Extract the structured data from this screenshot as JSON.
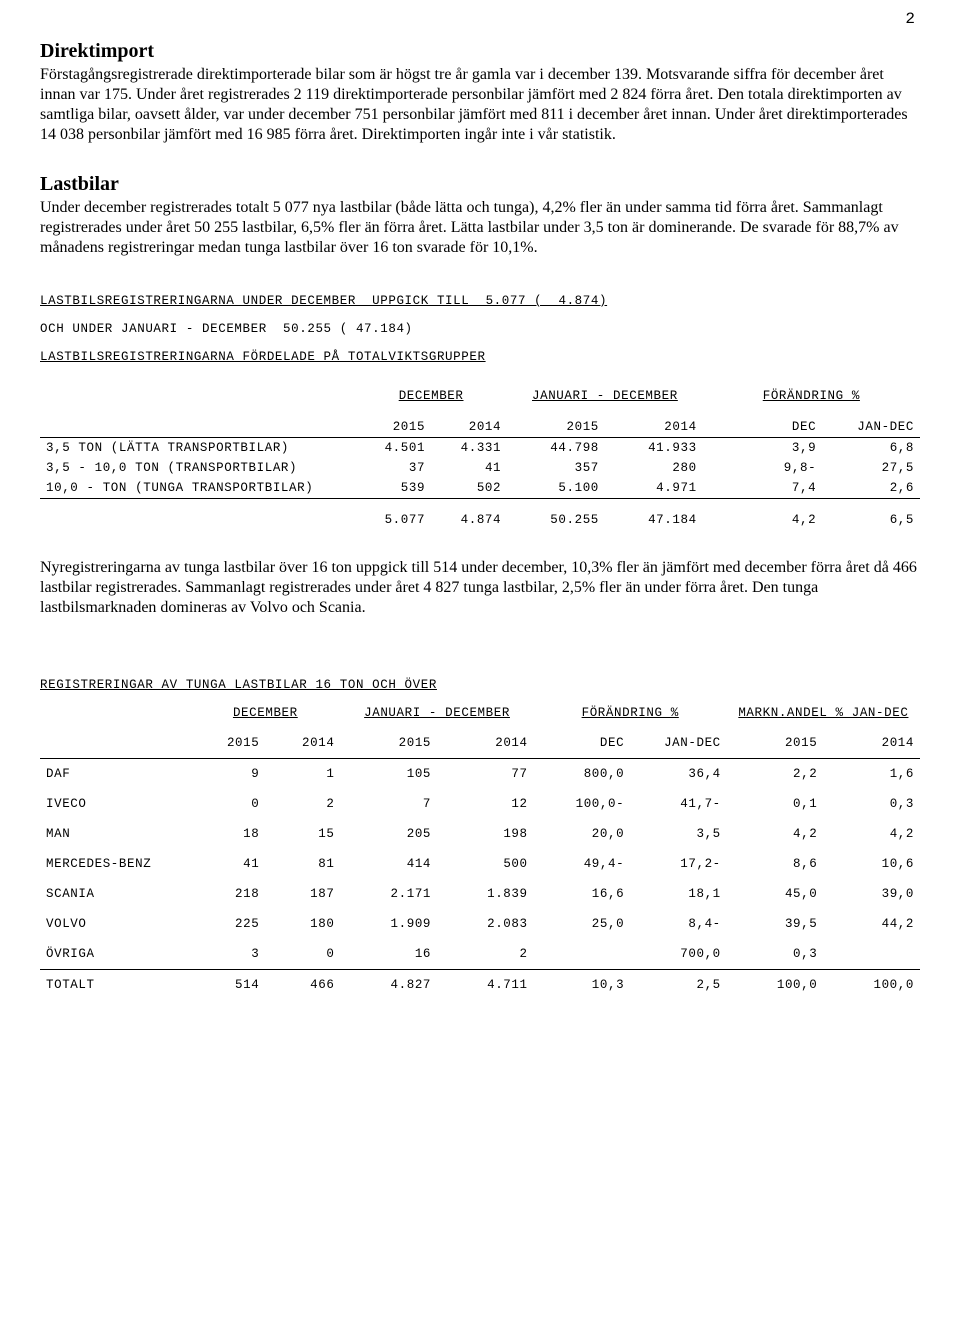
{
  "page_number": "2",
  "sec1": {
    "heading": "Direktimport",
    "text": "Förstagångsregistrerade direktimporterade bilar som är högst tre år gamla var i december 139. Motsvarande siffra för december året innan var 175. Under året registrerades 2 119 direktimporterade personbilar jämfört med 2 824 förra året. Den totala direktimporten av samtliga bilar, oavsett ålder, var under december 751 personbilar jämfört med 811 i december året innan. Under året direktimporterades 14 038 personbilar jämfört med 16 985 förra året. Direktimporten ingår inte i vår statistik."
  },
  "sec2": {
    "heading": "Lastbilar",
    "text": "Under december registrerades totalt 5 077 nya lastbilar (både lätta och tunga), 4,2% fler än under samma tid förra året. Sammanlagt registrerades under året 50 255 lastbilar, 6,5% fler än förra året. Lätta lastbilar under 3,5 ton är dominerande. De svarade för 88,7% av månadens registreringar medan tunga lastbilar över 16 ton svarade för 10,1%."
  },
  "block1": {
    "line1a": "LASTBILSREGISTRERINGARNA UNDER DECEMBER  UPPGICK TILL  5.077 (  4.874)",
    "line2": "OCH UNDER JANUARI - DECEMBER  50.255 ( 47.184)",
    "line3": "LASTBILSREGISTRERINGARNA FÖRDELADE PÅ TOTALVIKTSGRUPPER",
    "colhdr_a": "DECEMBER",
    "colhdr_b": "JANUARI - DECEMBER",
    "colhdr_c": "FÖRÄNDRING %",
    "col_2015": "2015",
    "col_2014": "2014",
    "col_dec": "DEC",
    "col_jandec": "JAN-DEC",
    "rows": [
      {
        "label": "      3,5 TON (LÄTTA TRANSPORTBILAR)",
        "d15": "4.501",
        "d14": "4.331",
        "y15": "44.798",
        "y14": "41.933",
        "dec": "3,9",
        "jd": "6,8"
      },
      {
        "label": " 3,5 - 10,0 TON (TRANSPORTBILAR)",
        "d15": "37",
        "d14": "41",
        "y15": "357",
        "y14": "280",
        "dec": "9,8-",
        "jd": "27,5"
      },
      {
        "label": "10,0 -      TON (TUNGA TRANSPORTBILAR)",
        "d15": "539",
        "d14": "502",
        "y15": "5.100",
        "y14": "4.971",
        "dec": "7,4",
        "jd": "2,6"
      }
    ],
    "total": {
      "d15": "5.077",
      "d14": "4.874",
      "y15": "50.255",
      "y14": "47.184",
      "dec": "4,2",
      "jd": "6,5"
    }
  },
  "para3": "Nyregistreringarna av tunga lastbilar över 16 ton uppgick till 514 under december, 10,3% fler än jämfört med december förra året då 466 lastbilar registrerades. Sammanlagt registrerades under året 4 827 tunga lastbilar, 2,5% fler än under förra året. Den tunga lastbilsmarknaden domineras av Volvo och Scania.",
  "block2": {
    "title": "REGISTRERINGAR AV TUNGA LASTBILAR 16 TON OCH ÖVER",
    "colhdr_a": "DECEMBER",
    "colhdr_b": "JANUARI - DECEMBER",
    "colhdr_c": "FÖRÄNDRING %",
    "colhdr_d": "MARKN.ANDEL % JAN-DEC",
    "col_2015": "2015",
    "col_2014": "2014",
    "col_dec": "DEC",
    "col_jandec": "JAN-DEC",
    "rows": [
      {
        "b": "DAF",
        "d15": "9",
        "d14": "1",
        "y15": "105",
        "y14": "77",
        "dec": "800,0",
        "jd": "36,4",
        "m15": "2,2",
        "m14": "1,6"
      },
      {
        "b": "IVECO",
        "d15": "0",
        "d14": "2",
        "y15": "7",
        "y14": "12",
        "dec": "100,0-",
        "jd": "41,7-",
        "m15": "0,1",
        "m14": "0,3"
      },
      {
        "b": "MAN",
        "d15": "18",
        "d14": "15",
        "y15": "205",
        "y14": "198",
        "dec": "20,0",
        "jd": "3,5",
        "m15": "4,2",
        "m14": "4,2"
      },
      {
        "b": "MERCEDES-BENZ",
        "d15": "41",
        "d14": "81",
        "y15": "414",
        "y14": "500",
        "dec": "49,4-",
        "jd": "17,2-",
        "m15": "8,6",
        "m14": "10,6"
      },
      {
        "b": "SCANIA",
        "d15": "218",
        "d14": "187",
        "y15": "2.171",
        "y14": "1.839",
        "dec": "16,6",
        "jd": "18,1",
        "m15": "45,0",
        "m14": "39,0"
      },
      {
        "b": "VOLVO",
        "d15": "225",
        "d14": "180",
        "y15": "1.909",
        "y14": "2.083",
        "dec": "25,0",
        "jd": "8,4-",
        "m15": "39,5",
        "m14": "44,2"
      },
      {
        "b": "ÖVRIGA",
        "d15": "3",
        "d14": "0",
        "y15": "16",
        "y14": "2",
        "dec": "",
        "jd": "700,0",
        "m15": "0,3",
        "m14": ""
      }
    ],
    "total": {
      "b": "TOTALT",
      "d15": "514",
      "d14": "466",
      "y15": "4.827",
      "y14": "4.711",
      "dec": "10,3",
      "jd": "2,5",
      "m15": "100,0",
      "m14": "100,0"
    }
  }
}
